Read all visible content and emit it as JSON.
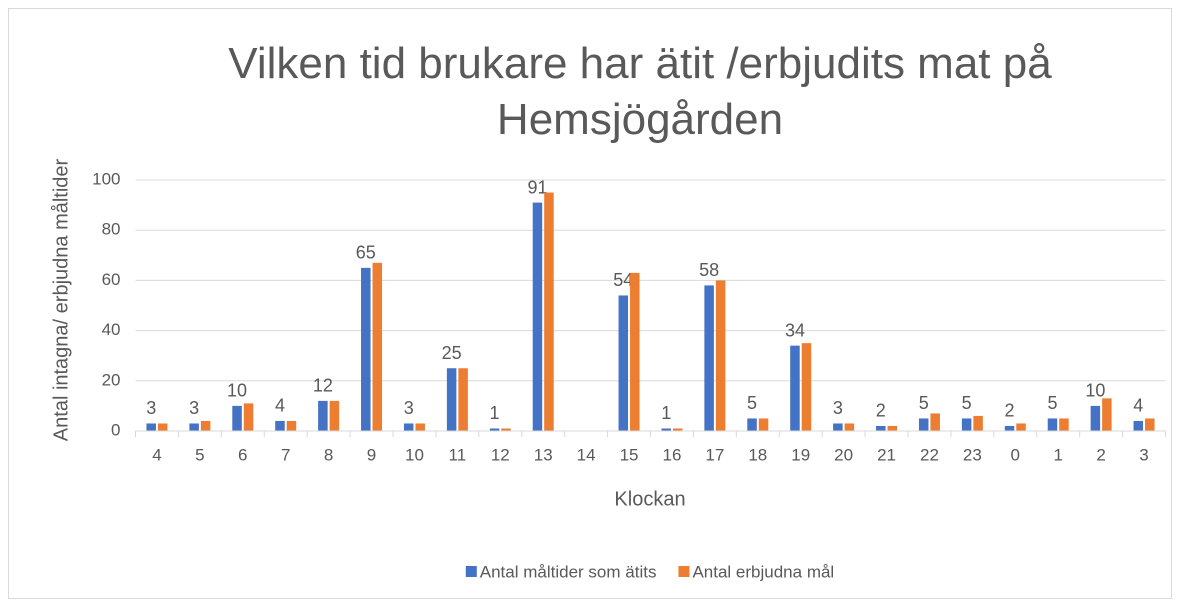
{
  "chart_data": {
    "type": "bar",
    "title": "Vilken tid brukare har ätit /erbjudits mat på Hemsjögården",
    "x_label": "Klockan",
    "y_label": "Antal intagna/ erbjudna måltider",
    "categories": [
      "4",
      "5",
      "6",
      "7",
      "8",
      "9",
      "10",
      "11",
      "12",
      "13",
      "14",
      "15",
      "16",
      "17",
      "18",
      "19",
      "20",
      "21",
      "22",
      "23",
      "0",
      "1",
      "2",
      "3"
    ],
    "series": [
      {
        "name": "Antal måltider som ätits",
        "color": "#4472c4",
        "data_labels": true,
        "values": [
          3,
          3,
          10,
          4,
          12,
          65,
          3,
          25,
          1,
          91,
          null,
          54,
          1,
          58,
          5,
          34,
          3,
          2,
          5,
          5,
          2,
          5,
          10,
          4
        ]
      },
      {
        "name": "Antal erbjudna mål",
        "color": "#ed7d31",
        "data_labels": false,
        "values": [
          3,
          4,
          11,
          4,
          12,
          67,
          3,
          25,
          1,
          95,
          null,
          63,
          1,
          60,
          5,
          35,
          3,
          2,
          7,
          6,
          3,
          5,
          13,
          5
        ]
      }
    ],
    "ylim": [
      0,
      100
    ],
    "yticks": [
      0,
      20,
      40,
      60,
      80,
      100
    ],
    "grid": true,
    "legend": "bottom"
  }
}
